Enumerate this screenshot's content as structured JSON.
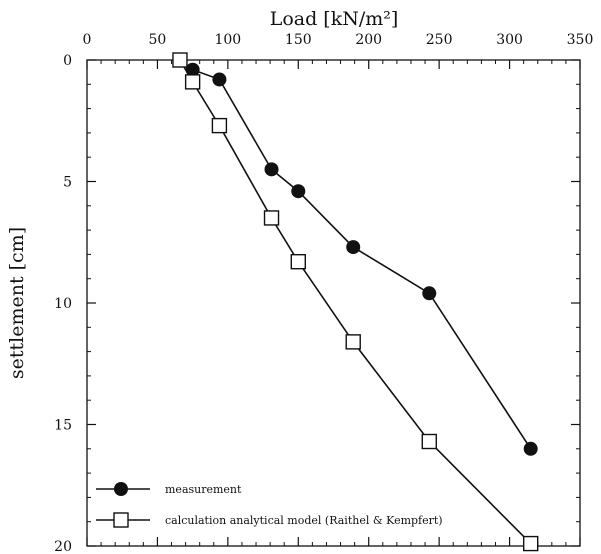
{
  "chart_data": {
    "type": "line",
    "title": "",
    "xlabel": "Load [kN/m²]",
    "ylabel": "settlement [cm]",
    "x_axis_position": "top",
    "y_axis_inverted": true,
    "xlim": [
      0,
      350
    ],
    "ylim": [
      0,
      20
    ],
    "x_ticks": [
      0,
      50,
      100,
      150,
      200,
      250,
      300,
      350
    ],
    "y_ticks": [
      0,
      5,
      10,
      15,
      20
    ],
    "grid": false,
    "legend_position": "bottom-left",
    "series": [
      {
        "name": "measurement",
        "marker": "filled-circle",
        "color": "#111111",
        "x": [
          66,
          75,
          94,
          131,
          150,
          189,
          243,
          315
        ],
        "y": [
          0.0,
          0.4,
          0.8,
          4.5,
          5.4,
          7.7,
          9.6,
          16.0
        ]
      },
      {
        "name": "calculation analytical model (Raithel & Kempfert)",
        "marker": "open-square",
        "color": "#111111",
        "x": [
          66,
          75,
          94,
          131,
          150,
          189,
          243,
          315
        ],
        "y": [
          0.0,
          0.9,
          2.7,
          6.5,
          8.3,
          11.6,
          15.7,
          19.9
        ]
      }
    ]
  }
}
